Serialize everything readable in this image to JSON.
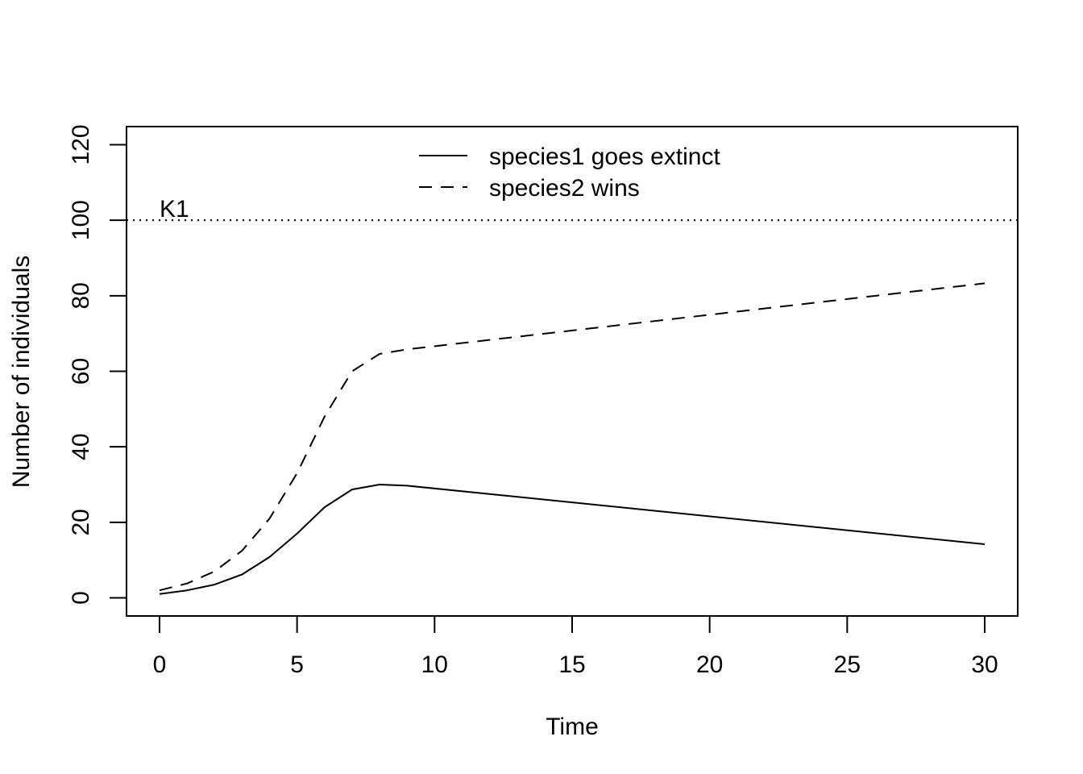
{
  "chart_data": {
    "type": "line",
    "title": "",
    "xlabel": "Time",
    "ylabel": "Number of individuals",
    "xlim": [
      -1.2,
      31.2
    ],
    "ylim": [
      -4.8,
      124.8
    ],
    "xticks": [
      0,
      5,
      10,
      15,
      20,
      25,
      30
    ],
    "yticks": [
      0,
      20,
      40,
      60,
      80,
      100,
      120
    ],
    "grid": false,
    "legend_position": "top-center",
    "reference_line": {
      "y": 100,
      "label": "K1",
      "style": "dotted"
    },
    "series": [
      {
        "name": "species1 goes extinct",
        "style": "solid",
        "color": "#000000",
        "x": [
          0,
          1,
          2,
          3,
          4,
          5,
          6,
          7,
          8,
          9,
          30
        ],
        "y": [
          1,
          2,
          3.5,
          6.2,
          10.8,
          17,
          24,
          28.7,
          30,
          29.7,
          14.2
        ]
      },
      {
        "name": "species2 wins",
        "style": "dashed",
        "color": "#000000",
        "x": [
          0,
          1,
          2,
          3,
          4,
          5,
          6,
          7,
          8,
          9,
          30
        ],
        "y": [
          2,
          3.8,
          7,
          12.5,
          21,
          33,
          48,
          60,
          64.6,
          65.8,
          83.3
        ]
      }
    ]
  }
}
